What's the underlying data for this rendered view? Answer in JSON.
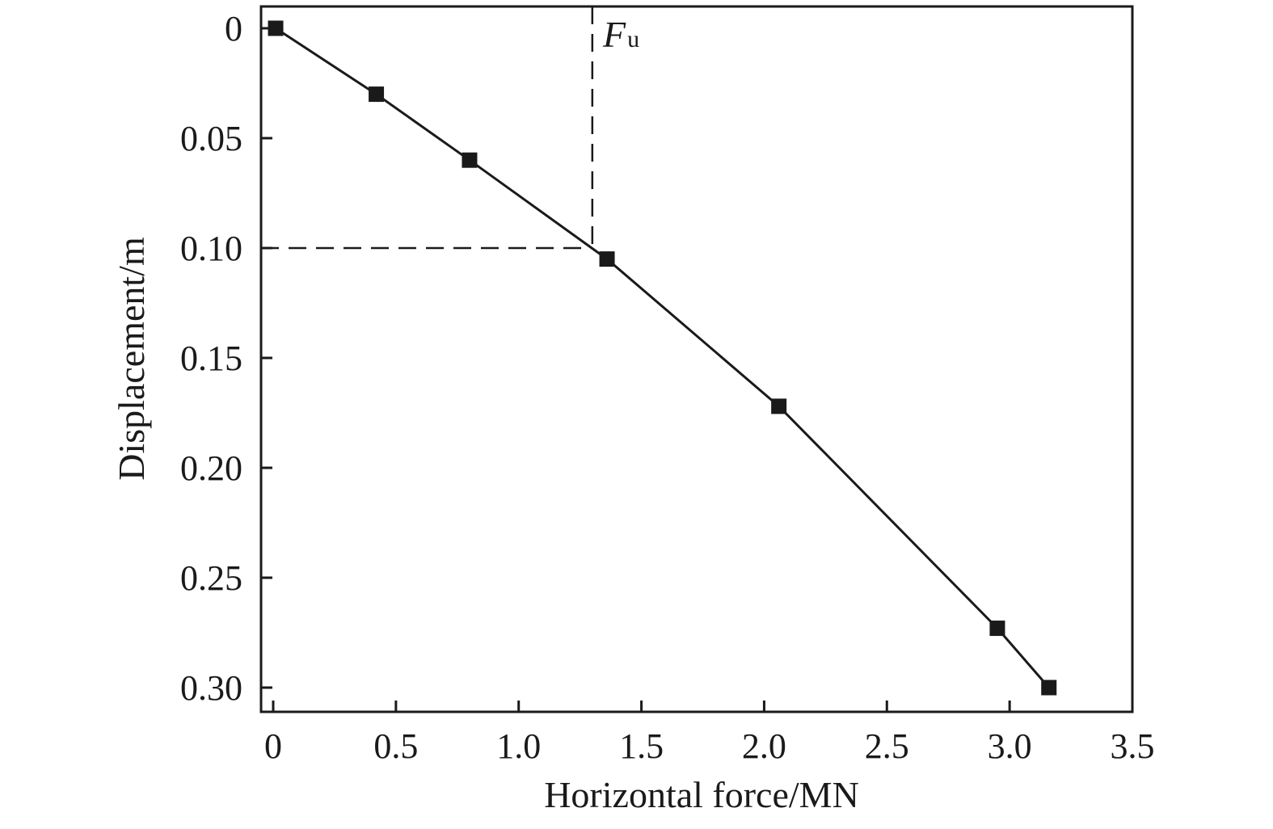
{
  "chart_data": {
    "type": "line",
    "title": "",
    "xlabel": "Horizontal force/MN",
    "ylabel": "Displacement/m",
    "xlim": [
      -0.05,
      3.5
    ],
    "ylim": [
      0,
      0.31
    ],
    "y_inverted": true,
    "grid": false,
    "x_ticks": [
      {
        "value": 0,
        "label": "0"
      },
      {
        "value": 0.5,
        "label": "0.5"
      },
      {
        "value": 1.0,
        "label": "1.0"
      },
      {
        "value": 1.5,
        "label": "1.5"
      },
      {
        "value": 2.0,
        "label": "2.0"
      },
      {
        "value": 2.5,
        "label": "2.5"
      },
      {
        "value": 3.0,
        "label": "3.0"
      },
      {
        "value": 3.5,
        "label": "3.5"
      }
    ],
    "y_ticks": [
      {
        "value": 0,
        "label": "0"
      },
      {
        "value": 0.05,
        "label": "0.05"
      },
      {
        "value": 0.1,
        "label": "0.10"
      },
      {
        "value": 0.15,
        "label": "0.15"
      },
      {
        "value": 0.2,
        "label": "0.20"
      },
      {
        "value": 0.25,
        "label": "0.25"
      },
      {
        "value": 0.3,
        "label": "0.30"
      }
    ],
    "series": [
      {
        "marker": "square",
        "color": "#1a1a1a",
        "x": [
          0.01,
          0.42,
          0.8,
          1.36,
          2.06,
          2.95,
          3.16
        ],
        "y": [
          0.0,
          0.03,
          0.06,
          0.105,
          0.172,
          0.273,
          0.3
        ]
      }
    ],
    "annotations": [
      {
        "type": "vline-dashed",
        "x": 1.3,
        "y_from": 0,
        "y_to": 0.1
      },
      {
        "type": "hline-dashed",
        "y": 0.1,
        "x_from": -0.05,
        "x_to": 1.3
      },
      {
        "type": "label",
        "main": "F",
        "sub": "u",
        "x": 1.3,
        "y": 0.0
      }
    ]
  }
}
